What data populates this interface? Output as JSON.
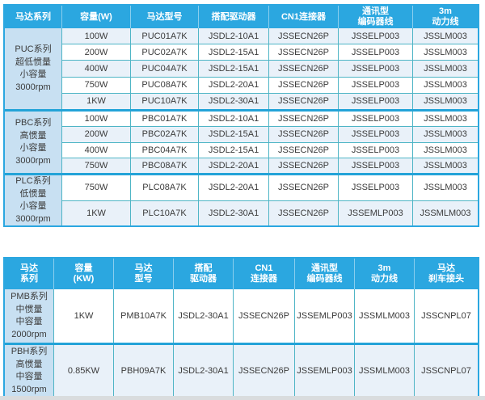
{
  "colors": {
    "header_bg": "#2ba7e0",
    "series_cell_bg": "#c8e0f2",
    "row_tint_bg": "#e9f1f9",
    "grid_line": "#4fb5c6",
    "outer_border": "#2ba7e0",
    "text": "#3b3b3b"
  },
  "table1": {
    "headers": [
      [
        "马达系列"
      ],
      [
        "容量(W)"
      ],
      [
        "马达型号"
      ],
      [
        "搭配驱动器"
      ],
      [
        "CN1连接器"
      ],
      [
        "通讯型",
        "编码器线"
      ],
      [
        "3m",
        "动力线"
      ]
    ],
    "groups": [
      {
        "series": [
          "PUC系列",
          "超低惯量",
          "小容量",
          "3000rpm"
        ],
        "rows": [
          [
            "100W",
            "PUC01A7K",
            "JSDL2-10A1",
            "JSSECN26P",
            "JSSELP003",
            "JSSLM003"
          ],
          [
            "200W",
            "PUC02A7K",
            "JSDL2-15A1",
            "JSSECN26P",
            "JSSELP003",
            "JSSLM003"
          ],
          [
            "400W",
            "PUC04A7K",
            "JSDL2-15A1",
            "JSSECN26P",
            "JSSELP003",
            "JSSLM003"
          ],
          [
            "750W",
            "PUC08A7K",
            "JSDL2-20A1",
            "JSSECN26P",
            "JSSELP003",
            "JSSLM003"
          ],
          [
            "1KW",
            "PUC10A7K",
            "JSDL2-30A1",
            "JSSECN26P",
            "JSSELP003",
            "JSSLM003"
          ]
        ]
      },
      {
        "series": [
          "PBC系列",
          "高惯量",
          "小容量",
          "3000rpm"
        ],
        "rows": [
          [
            "100W",
            "PBC01A7K",
            "JSDL2-10A1",
            "JSSECN26P",
            "JSSELP003",
            "JSSLM003"
          ],
          [
            "200W",
            "PBC02A7K",
            "JSDL2-15A1",
            "JSSECN26P",
            "JSSELP003",
            "JSSLM003"
          ],
          [
            "400W",
            "PBC04A7K",
            "JSDL2-15A1",
            "JSSECN26P",
            "JSSELP003",
            "JSSLM003"
          ],
          [
            "750W",
            "PBC08A7K",
            "JSDL2-20A1",
            "JSSECN26P",
            "JSSELP003",
            "JSSLM003"
          ]
        ]
      },
      {
        "series": [
          "PLC系列",
          "低惯量",
          "小容量",
          "3000rpm"
        ],
        "rows": [
          [
            "750W",
            "PLC08A7K",
            "JSDL2-20A1",
            "JSSECN26P",
            "JSSELP003",
            "JSSLM003"
          ],
          [
            "1KW",
            "PLC10A7K",
            "JSDL2-30A1",
            "JSSECN26P",
            "JSSEMLP003",
            "JSSMLM003"
          ]
        ]
      }
    ]
  },
  "table2": {
    "headers": [
      [
        "马达",
        "系列"
      ],
      [
        "容量",
        "(KW)"
      ],
      [
        "马达",
        "型号"
      ],
      [
        "搭配",
        "驱动器"
      ],
      [
        "CN1",
        "连接器"
      ],
      [
        "通讯型",
        "编码器线"
      ],
      [
        "3m",
        "动力线"
      ],
      [
        "马达",
        "刹车接头"
      ]
    ],
    "groups": [
      {
        "series": [
          "PMB系列",
          "中惯量",
          "中容量",
          "2000rpm"
        ],
        "rows": [
          [
            "1KW",
            "PMB10A7K",
            "JSDL2-30A1",
            "JSSECN26P",
            "JSSEMLP003",
            "JSSMLM003",
            "JSSCNPL07"
          ]
        ]
      },
      {
        "series": [
          "PBH系列",
          "高惯量",
          "中容量",
          "1500rpm"
        ],
        "rows": [
          [
            "0.85KW",
            "PBH09A7K",
            "JSDL2-30A1",
            "JSSECN26P",
            "JSSEMLP003",
            "JSSMLM003",
            "JSSCNPL07"
          ]
        ]
      }
    ]
  }
}
